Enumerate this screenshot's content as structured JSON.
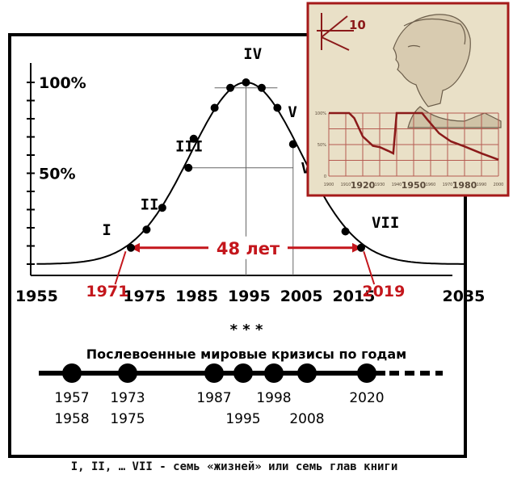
{
  "chart_data": [
    {
      "type": "line",
      "x_ticks": [
        "1955",
        "1975",
        "1985",
        "1995",
        "2005",
        "2015",
        "2035"
      ],
      "x_ticks_highlight": [
        {
          "label": "1971",
          "color": "#c4161c"
        },
        {
          "label": "2019",
          "color": "#c4161c"
        }
      ],
      "y_ticks": [
        "50%",
        "100%"
      ],
      "xlim": [
        1955,
        2037
      ],
      "ylim": [
        0,
        100
      ],
      "curve": {
        "mean": 1995,
        "sigma": 10.6
      },
      "points": [
        {
          "x": 1973,
          "y": 9
        },
        {
          "x": 1976,
          "y": 19
        },
        {
          "x": 1979,
          "y": 31
        },
        {
          "x": 1984,
          "y": 53
        },
        {
          "x": 1985,
          "y": 69
        },
        {
          "x": 1989,
          "y": 86
        },
        {
          "x": 1992,
          "y": 97
        },
        {
          "x": 1995,
          "y": 100
        },
        {
          "x": 1998,
          "y": 97
        },
        {
          "x": 2001,
          "y": 86
        },
        {
          "x": 2004,
          "y": 66
        },
        {
          "x": 2014,
          "y": 18
        },
        {
          "x": 2017,
          "y": 9
        }
      ],
      "roman_labels": [
        "I",
        "II",
        "III",
        "IV",
        "V",
        "VI",
        "VII"
      ],
      "span_label": "48 лет",
      "accent_color": "#c4161c"
    },
    {
      "type": "line",
      "inset": true,
      "logo_text": "10",
      "x_ticks": [
        "1900",
        "1910",
        "1920",
        "1930",
        "1940",
        "1950",
        "1960",
        "1970",
        "1980",
        "1990",
        "2000"
      ],
      "y_ticks": [
        "0",
        "50%",
        "100%"
      ],
      "series": [
        {
          "values": [
            [
              1900,
              100
            ],
            [
              1912,
              100
            ],
            [
              1915,
              92
            ],
            [
              1920,
              63
            ],
            [
              1926,
              48
            ],
            [
              1930,
              46
            ],
            [
              1935,
              40
            ],
            [
              1938,
              36
            ],
            [
              1940,
              100
            ],
            [
              1955,
              100
            ],
            [
              1958,
              90
            ],
            [
              1965,
              68
            ],
            [
              1972,
              55
            ],
            [
              1980,
              47
            ],
            [
              1990,
              36
            ],
            [
              2000,
              26
            ]
          ]
        }
      ]
    }
  ],
  "decoration": {
    "stars": "* * *"
  },
  "timeline": {
    "title": "Послевоенные мировые кризисы по годам",
    "years": [
      {
        "top": "1957",
        "bottom": "1958"
      },
      {
        "top": "1973",
        "bottom": "1975"
      },
      {
        "top": "1987",
        "bottom": ""
      },
      {
        "top": "",
        "bottom": "1995"
      },
      {
        "top": "1998",
        "bottom": ""
      },
      {
        "top": "",
        "bottom": "2008"
      },
      {
        "top": "2020",
        "bottom": ""
      }
    ]
  },
  "caption": "I, II, … VII - семь «жизней» или семь глав книги"
}
